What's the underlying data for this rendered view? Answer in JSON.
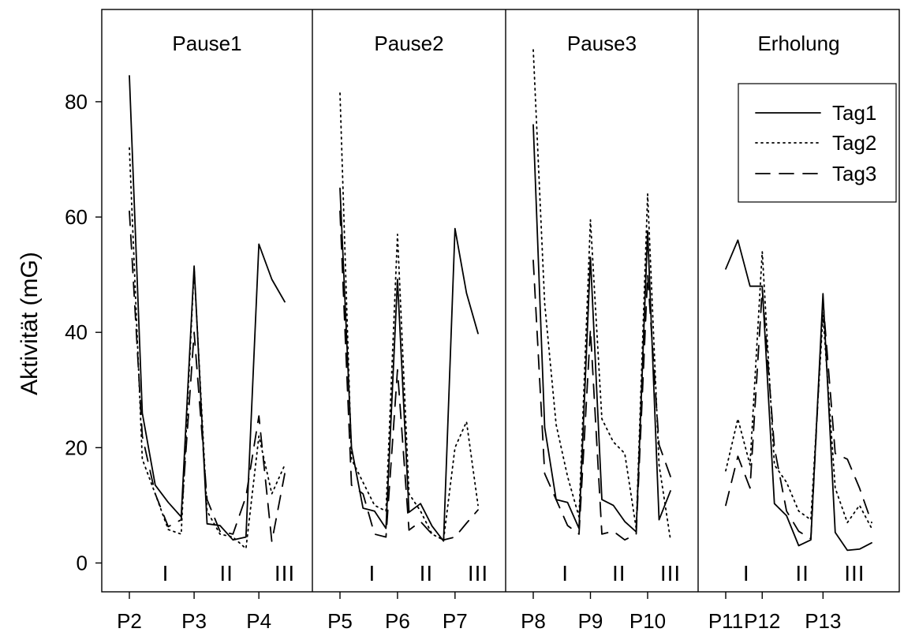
{
  "chart_data": {
    "type": "line",
    "ylabel": "Aktivität (mG)",
    "xlabel": "",
    "ylim": [
      -5,
      96
    ],
    "yticks": [
      0,
      20,
      40,
      60,
      80
    ],
    "grid": false,
    "legend_placement": "top-right",
    "x_tick_labels": [
      "P2",
      "P3",
      "P4",
      "P5",
      "P6",
      "P7",
      "P8",
      "P9",
      "P10",
      "P11",
      "P12",
      "P13"
    ],
    "panels": [
      {
        "title": "Pause1",
        "phase_markers": [
          "I",
          "II",
          "III"
        ],
        "series": [
          {
            "name": "Tag1",
            "points": [
              [
                0,
                84.5
              ],
              [
                1,
                26.0
              ],
              [
                2,
                13.5
              ],
              [
                3,
                10.5
              ],
              [
                4,
                8.0
              ],
              [
                5,
                51.5
              ],
              [
                6,
                6.8
              ],
              [
                7,
                6.5
              ],
              [
                8,
                4.0
              ],
              [
                9,
                4.5
              ],
              [
                10,
                55.3
              ],
              [
                11,
                49.2
              ],
              [
                12,
                45.3
              ]
            ]
          },
          {
            "name": "Tag2",
            "points": [
              [
                0,
                72.0
              ],
              [
                1,
                18.0
              ],
              [
                2,
                12.0
              ],
              [
                3,
                5.8
              ],
              [
                4,
                5.0
              ],
              [
                5,
                51.0
              ],
              [
                6,
                9.0
              ],
              [
                7,
                5.0
              ],
              [
                8,
                4.5
              ],
              [
                9,
                2.5
              ],
              [
                10,
                22.0
              ],
              [
                11,
                12.0
              ],
              [
                12,
                17.0
              ]
            ]
          },
          {
            "name": "Tag3",
            "points": [
              [
                0,
                61.0
              ],
              [
                1,
                22.0
              ],
              [
                2,
                12.0
              ],
              [
                3,
                6.3
              ],
              [
                4,
                7.5
              ],
              [
                5,
                40.0
              ],
              [
                6,
                11.0
              ],
              [
                7,
                5.5
              ],
              [
                8,
                5.0
              ],
              [
                9,
                11.5
              ],
              [
                10,
                25.5
              ],
              [
                11,
                3.7
              ],
              [
                12,
                15.5
              ]
            ]
          }
        ]
      },
      {
        "title": "Pause2",
        "phase_markers": [
          "I",
          "II",
          "III"
        ],
        "series": [
          {
            "name": "Tag1",
            "points": [
              [
                0,
                65.0
              ],
              [
                1,
                20.0
              ],
              [
                2,
                9.5
              ],
              [
                3,
                9.0
              ],
              [
                4,
                6.0
              ],
              [
                5,
                49.2
              ],
              [
                6,
                8.8
              ],
              [
                7,
                10.3
              ],
              [
                8,
                6.4
              ],
              [
                9,
                3.8
              ],
              [
                10,
                58.0
              ],
              [
                11,
                46.8
              ],
              [
                12,
                39.8
              ]
            ]
          },
          {
            "name": "Tag2",
            "points": [
              [
                0,
                81.5
              ],
              [
                1,
                18.0
              ],
              [
                2,
                14.0
              ],
              [
                3,
                10.0
              ],
              [
                4,
                9.0
              ],
              [
                5,
                57.0
              ],
              [
                6,
                12.0
              ],
              [
                7,
                9.0
              ],
              [
                8,
                5.0
              ],
              [
                9,
                4.0
              ],
              [
                10,
                20.0
              ],
              [
                11,
                24.5
              ],
              [
                12,
                10.0
              ]
            ]
          },
          {
            "name": "Tag3",
            "points": [
              [
                0,
                61.0
              ],
              [
                1,
                13.5
              ],
              [
                2,
                12.0
              ],
              [
                3,
                5.0
              ],
              [
                4,
                4.5
              ],
              [
                5,
                33.5
              ],
              [
                6,
                5.7
              ],
              [
                7,
                7.2
              ],
              [
                8,
                5.0
              ],
              [
                9,
                4.0
              ],
              [
                10,
                4.5
              ],
              [
                11,
                6.9
              ],
              [
                12,
                9.2
              ]
            ]
          }
        ]
      },
      {
        "title": "Pause3",
        "phase_markers": [
          "I",
          "II",
          "III"
        ],
        "series": [
          {
            "name": "Tag1",
            "points": [
              [
                0,
                76.0
              ],
              [
                1,
                23.5
              ],
              [
                2,
                11.0
              ],
              [
                3,
                10.5
              ],
              [
                4,
                6.0
              ],
              [
                5,
                53.0
              ],
              [
                6,
                11.0
              ],
              [
                7,
                10.0
              ],
              [
                8,
                7.2
              ],
              [
                9,
                5.4
              ],
              [
                10,
                57.6
              ],
              [
                11,
                7.5
              ],
              [
                12,
                12.5
              ]
            ]
          },
          {
            "name": "Tag2",
            "points": [
              [
                0,
                89.0
              ],
              [
                1,
                45.0
              ],
              [
                2,
                24.0
              ],
              [
                3,
                15.0
              ],
              [
                4,
                8.0
              ],
              [
                5,
                59.5
              ],
              [
                6,
                25.0
              ],
              [
                7,
                21.0
              ],
              [
                8,
                19.0
              ],
              [
                9,
                6.0
              ],
              [
                10,
                64.0
              ],
              [
                11,
                17.0
              ],
              [
                12,
                4.0
              ]
            ]
          },
          {
            "name": "Tag3",
            "points": [
              [
                0,
                52.5
              ],
              [
                1,
                15.5
              ],
              [
                2,
                11.0
              ],
              [
                3,
                6.5
              ],
              [
                4,
                5.0
              ],
              [
                5,
                40.5
              ],
              [
                6,
                5.0
              ],
              [
                7,
                5.5
              ],
              [
                8,
                4.0
              ],
              [
                9,
                5.0
              ],
              [
                10,
                50.0
              ],
              [
                11,
                20.5
              ],
              [
                12,
                15.0
              ]
            ]
          }
        ]
      },
      {
        "title": "Erholung",
        "phase_markers": [
          "I",
          "II",
          "III"
        ],
        "series": [
          {
            "name": "Tag1",
            "points": [
              [
                0,
                51.0
              ],
              [
                1,
                56.0
              ],
              [
                2,
                48.0
              ],
              [
                3,
                48.0
              ],
              [
                4,
                10.3
              ],
              [
                5,
                8.2
              ],
              [
                6,
                3.0
              ],
              [
                7,
                4.0
              ],
              [
                8,
                46.7
              ],
              [
                9,
                5.3
              ],
              [
                10,
                2.2
              ],
              [
                11,
                2.4
              ],
              [
                12,
                3.5
              ]
            ]
          },
          {
            "name": "Tag2",
            "points": [
              [
                0,
                16.0
              ],
              [
                1,
                25.0
              ],
              [
                2,
                17.0
              ],
              [
                3,
                54.0
              ],
              [
                4,
                17.0
              ],
              [
                5,
                14.0
              ],
              [
                6,
                9.0
              ],
              [
                7,
                7.5
              ],
              [
                8,
                43.0
              ],
              [
                9,
                13.0
              ],
              [
                10,
                7.0
              ],
              [
                11,
                10.0
              ],
              [
                12,
                6.0
              ]
            ]
          },
          {
            "name": "Tag3",
            "points": [
              [
                0,
                10.0
              ],
              [
                1,
                18.5
              ],
              [
                2,
                13.0
              ],
              [
                3,
                47.5
              ],
              [
                4,
                20.0
              ],
              [
                5,
                9.0
              ],
              [
                6,
                5.5
              ],
              [
                7,
                4.2
              ],
              [
                8,
                45.5
              ],
              [
                9,
                19.0
              ],
              [
                10,
                18.0
              ],
              [
                11,
                13.0
              ],
              [
                12,
                7.0
              ]
            ]
          }
        ]
      }
    ]
  }
}
